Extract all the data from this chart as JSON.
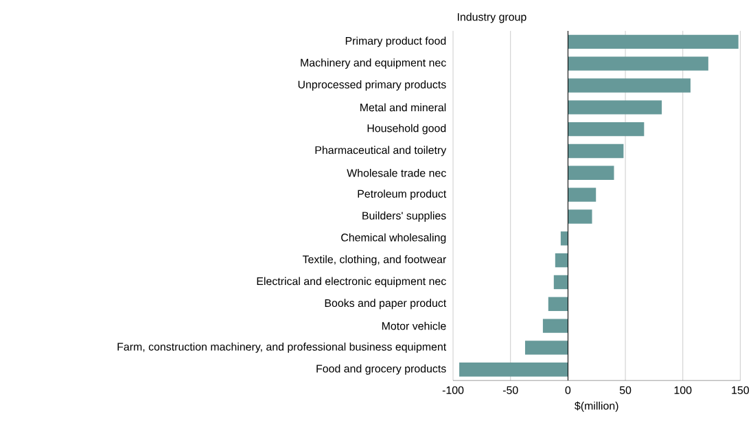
{
  "chart_data": {
    "type": "bar",
    "orientation": "horizontal",
    "ylabel": "Industry group",
    "xlabel": "$(million)",
    "categories": [
      "Primary product food",
      "Machinery and equipment nec",
      "Unprocessed primary products",
      "Metal and mineral",
      "Household good",
      "Pharmaceutical and toiletry",
      "Wholesale trade nec",
      "Petroleum product",
      "Builders' supplies",
      "Chemical wholesaling",
      "Textile, clothing, and footwear",
      "Electrical and electronic equipment nec",
      "Books and paper product",
      "Motor vehicle",
      "Farm, construction machinery, and professional business equipment",
      "Food and grocery products"
    ],
    "values": [
      148.4,
      122.2,
      106.7,
      81.7,
      66.3,
      48.4,
      40.1,
      24.4,
      21.0,
      -6.3,
      -11.1,
      -12.3,
      -17.1,
      -21.8,
      -37.3,
      -94.6
    ],
    "color": "#669999",
    "xlim": [
      -100,
      150
    ],
    "xticks": [
      -100,
      -50,
      0,
      50,
      100,
      150
    ],
    "grid": "x"
  }
}
